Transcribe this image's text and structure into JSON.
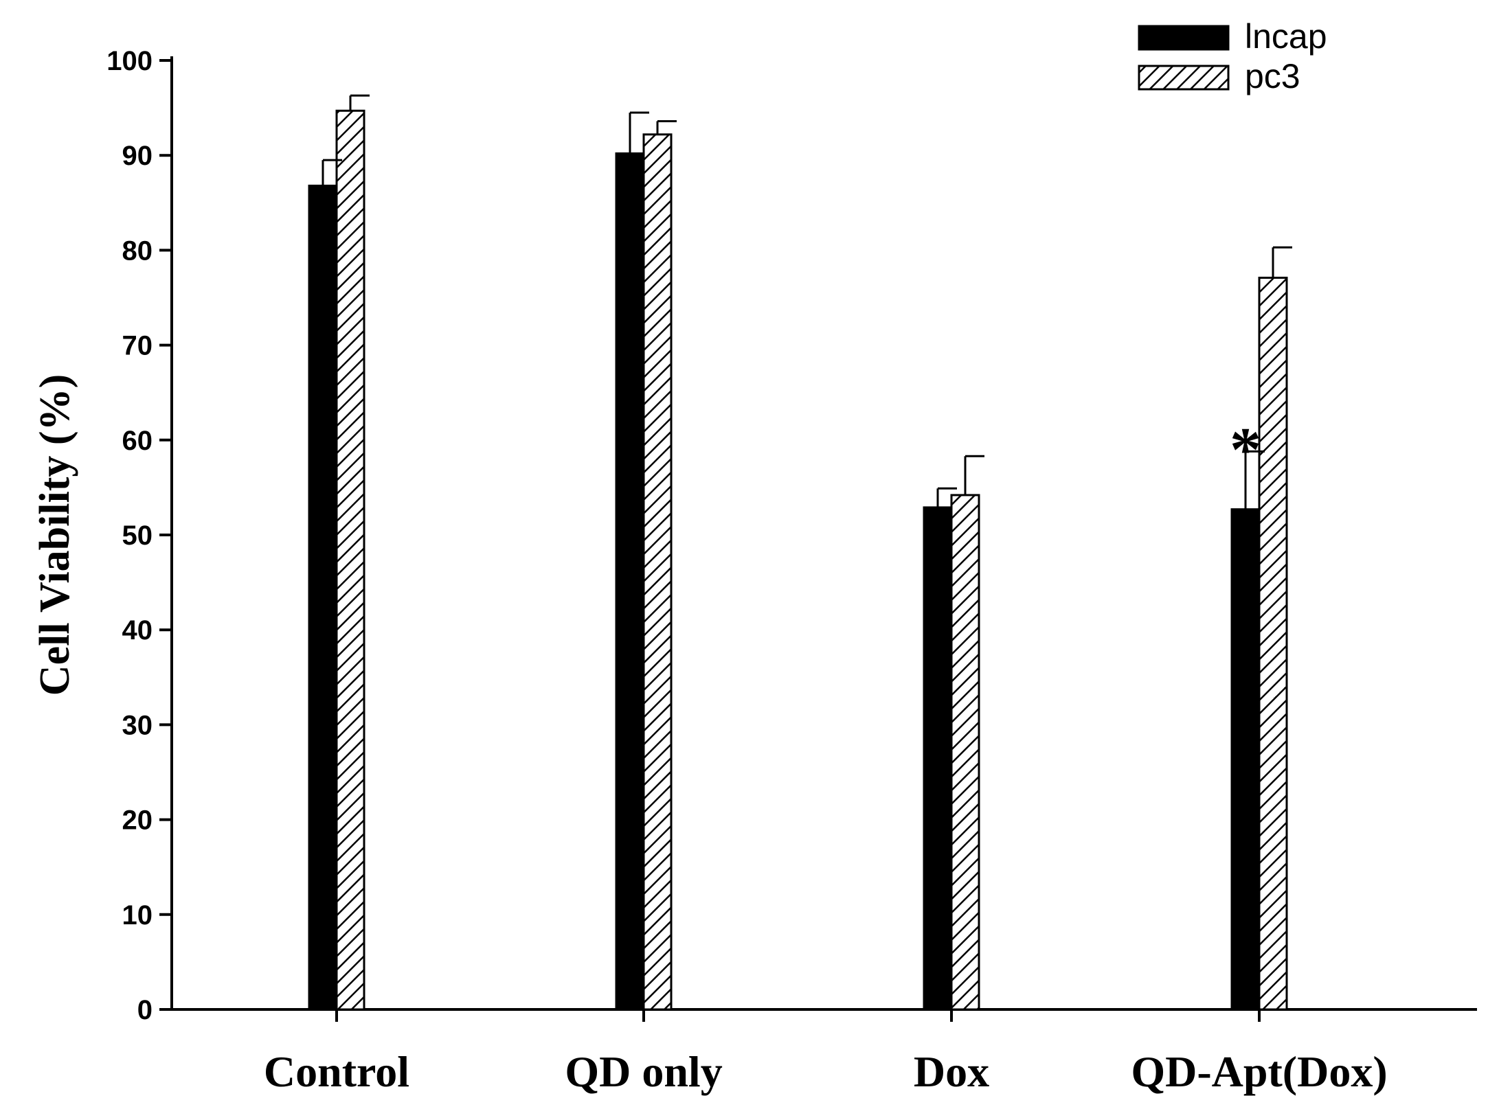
{
  "chart_data": {
    "type": "bar",
    "title": "",
    "xlabel": "",
    "ylabel": "Cell Viability (%)",
    "ylim": [
      0,
      100
    ],
    "yticks": [
      0,
      10,
      20,
      30,
      40,
      50,
      60,
      70,
      80,
      90,
      100
    ],
    "categories": [
      "Control",
      "QD only",
      "Dox",
      "QD-Apt(Dox)"
    ],
    "series": [
      {
        "name": "lncap",
        "fill": "solid",
        "color": "#000000",
        "values": [
          86.8,
          90.2,
          52.9,
          52.7
        ],
        "errors": [
          2.7,
          4.3,
          2.0,
          6.1
        ]
      },
      {
        "name": "pc3",
        "fill": "hatched",
        "color": "#000000",
        "values": [
          94.7,
          92.2,
          54.2,
          77.1
        ],
        "errors": [
          1.6,
          1.4,
          4.1,
          3.2
        ]
      }
    ],
    "annotations": [
      {
        "text": "*",
        "category": "QD-Apt(Dox)",
        "series": "lncap"
      }
    ],
    "legend": {
      "position": "top-right"
    },
    "grid": false
  }
}
